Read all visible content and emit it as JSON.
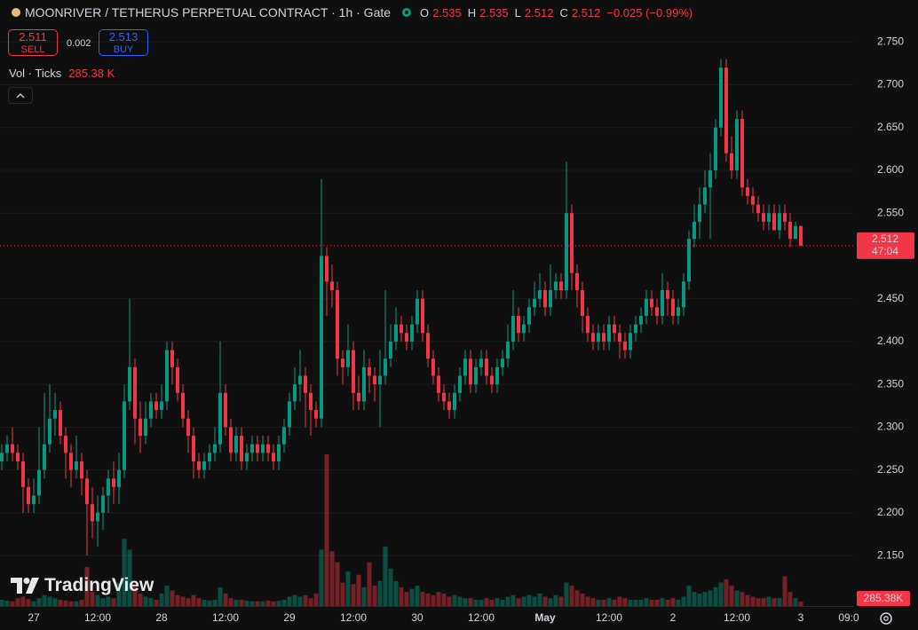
{
  "chart_data": {
    "type": "candlestick",
    "title": "MOONRIVER / TETHERUS PERPETUAL CONTRACT · 1h · Gate",
    "ohlc_labels": [
      "O",
      "H",
      "L",
      "C"
    ],
    "change": "−0.025 (−0.99%)",
    "sell": {
      "price": 2.511,
      "label": "SELL"
    },
    "spread": 0.002,
    "buy": {
      "price": 2.513,
      "label": "BUY"
    },
    "indicator": "Vol · Ticks",
    "volume_legend": "285.38 K",
    "volume_tag": "285.38K",
    "countdown": "47:04",
    "watermark": "TradingView",
    "up_color": "#089981",
    "down_color": "#f23645",
    "grid": true,
    "ylim": [
      2.091,
      2.799
    ],
    "yticks": [
      {
        "value": 2.15,
        "label": "2.150"
      },
      {
        "value": 2.2,
        "label": "2.200"
      },
      {
        "value": 2.25,
        "label": "2.250"
      },
      {
        "value": 2.3,
        "label": "2.300"
      },
      {
        "value": 2.35,
        "label": "2.350"
      },
      {
        "value": 2.4,
        "label": "2.400"
      },
      {
        "value": 2.45,
        "label": "2.450"
      },
      {
        "value": 2.55,
        "label": "2.550"
      },
      {
        "value": 2.6,
        "label": "2.600"
      },
      {
        "value": 2.65,
        "label": "2.650"
      },
      {
        "value": 2.7,
        "label": "2.700"
      },
      {
        "value": 2.75,
        "label": "2.750"
      }
    ],
    "vlim": [
      0,
      9700
    ],
    "categories": [
      null,
      null,
      null,
      null,
      null,
      null,
      "27",
      null,
      null,
      null,
      null,
      null,
      null,
      null,
      null,
      null,
      null,
      null,
      "12:00",
      null,
      null,
      null,
      null,
      null,
      null,
      null,
      null,
      null,
      null,
      null,
      "28",
      null,
      null,
      null,
      null,
      null,
      null,
      null,
      null,
      null,
      null,
      null,
      "12:00",
      null,
      null,
      null,
      null,
      null,
      null,
      null,
      null,
      null,
      null,
      null,
      "29",
      null,
      null,
      null,
      null,
      null,
      null,
      null,
      null,
      null,
      null,
      null,
      "12:00",
      null,
      null,
      null,
      null,
      null,
      null,
      null,
      null,
      null,
      null,
      null,
      "30",
      null,
      null,
      null,
      null,
      null,
      null,
      null,
      null,
      null,
      null,
      null,
      "12:00",
      null,
      null,
      null,
      null,
      null,
      null,
      null,
      null,
      null,
      null,
      null,
      "May",
      null,
      null,
      null,
      null,
      null,
      null,
      null,
      null,
      null,
      null,
      null,
      "12:00",
      null,
      null,
      null,
      null,
      null,
      null,
      null,
      null,
      null,
      null,
      null,
      "2",
      null,
      null,
      null,
      null,
      null,
      null,
      null,
      null,
      null,
      null,
      null,
      "12:00",
      null,
      null,
      null,
      null,
      null,
      null,
      null,
      null,
      null,
      null,
      null,
      "3",
      null,
      null,
      null,
      null,
      null,
      null,
      null,
      null,
      "09:0"
    ],
    "open": [
      2.26,
      2.27,
      2.28,
      2.27,
      2.26,
      2.23,
      2.21,
      2.22,
      2.25,
      2.28,
      2.31,
      2.32,
      2.29,
      2.27,
      2.25,
      2.26,
      2.24,
      2.21,
      2.19,
      2.2,
      2.22,
      2.24,
      2.23,
      2.25,
      2.33,
      2.37,
      2.31,
      2.29,
      2.31,
      2.33,
      2.32,
      2.33,
      2.39,
      2.37,
      2.34,
      2.31,
      2.29,
      2.26,
      2.25,
      2.26,
      2.27,
      2.28,
      2.34,
      2.3,
      2.27,
      2.29,
      2.26,
      2.27,
      2.28,
      2.27,
      2.28,
      2.27,
      2.26,
      2.28,
      2.3,
      2.33,
      2.35,
      2.36,
      2.34,
      2.32,
      2.31,
      2.5,
      2.47,
      2.46,
      2.38,
      2.37,
      2.39,
      2.34,
      2.33,
      2.37,
      2.36,
      2.35,
      2.36,
      2.38,
      2.4,
      2.42,
      2.41,
      2.4,
      2.42,
      2.45,
      2.41,
      2.38,
      2.36,
      2.34,
      2.33,
      2.32,
      2.34,
      2.36,
      2.38,
      2.35,
      2.37,
      2.38,
      2.36,
      2.35,
      2.37,
      2.38,
      2.4,
      2.43,
      2.41,
      2.42,
      2.44,
      2.45,
      2.46,
      2.44,
      2.46,
      2.47,
      2.46,
      2.55,
      2.48,
      2.46,
      2.43,
      2.41,
      2.4,
      2.41,
      2.4,
      2.42,
      2.41,
      2.4,
      2.39,
      2.41,
      2.42,
      2.43,
      2.45,
      2.44,
      2.43,
      2.46,
      2.45,
      2.43,
      2.44,
      2.47,
      2.52,
      2.54,
      2.56,
      2.58,
      2.6,
      2.65,
      2.72,
      2.62,
      2.6,
      2.66,
      2.58,
      2.57,
      2.56,
      2.55,
      2.54,
      2.55,
      2.53,
      2.55,
      2.54,
      2.52,
      2.535,
      null,
      null,
      null,
      null,
      null,
      null,
      null,
      null,
      null
    ],
    "high": [
      2.28,
      2.29,
      2.3,
      2.28,
      2.27,
      2.24,
      2.24,
      2.3,
      2.34,
      2.35,
      2.34,
      2.33,
      2.3,
      2.28,
      2.29,
      2.27,
      2.25,
      2.23,
      2.22,
      2.23,
      2.25,
      2.26,
      2.27,
      2.35,
      2.45,
      2.38,
      2.33,
      2.33,
      2.34,
      2.34,
      2.35,
      2.4,
      2.4,
      2.38,
      2.35,
      2.32,
      2.3,
      2.27,
      2.27,
      2.28,
      2.3,
      2.4,
      2.35,
      2.31,
      2.3,
      2.3,
      2.28,
      2.29,
      2.29,
      2.29,
      2.29,
      2.28,
      2.29,
      2.31,
      2.34,
      2.37,
      2.39,
      2.37,
      2.35,
      2.33,
      2.59,
      2.51,
      2.49,
      2.47,
      2.39,
      2.42,
      2.4,
      2.36,
      2.39,
      2.38,
      2.37,
      2.39,
      2.46,
      2.42,
      2.44,
      2.43,
      2.42,
      2.43,
      2.46,
      2.46,
      2.42,
      2.39,
      2.37,
      2.35,
      2.34,
      2.35,
      2.37,
      2.39,
      2.39,
      2.38,
      2.39,
      2.39,
      2.37,
      2.38,
      2.39,
      2.42,
      2.46,
      2.44,
      2.43,
      2.45,
      2.47,
      2.48,
      2.47,
      2.49,
      2.48,
      2.48,
      2.61,
      2.56,
      2.49,
      2.47,
      2.44,
      2.42,
      2.42,
      2.42,
      2.43,
      2.43,
      2.42,
      2.41,
      2.42,
      2.43,
      2.44,
      2.46,
      2.46,
      2.45,
      2.48,
      2.47,
      2.46,
      2.45,
      2.48,
      2.53,
      2.56,
      2.58,
      2.6,
      2.62,
      2.66,
      2.73,
      2.73,
      2.64,
      2.67,
      2.67,
      2.59,
      2.58,
      2.57,
      2.56,
      2.56,
      2.56,
      2.56,
      2.56,
      2.55,
      2.54,
      2.535,
      null,
      null,
      null,
      null,
      null,
      null,
      null,
      null,
      null
    ],
    "low": [
      2.25,
      2.26,
      2.26,
      2.25,
      2.2,
      2.2,
      2.2,
      2.21,
      2.24,
      2.27,
      2.29,
      2.28,
      2.24,
      2.23,
      2.24,
      2.22,
      2.15,
      2.17,
      2.16,
      2.18,
      2.2,
      2.21,
      2.21,
      2.24,
      2.32,
      2.28,
      2.27,
      2.28,
      2.3,
      2.31,
      2.31,
      2.32,
      2.35,
      2.33,
      2.3,
      2.27,
      2.24,
      2.24,
      2.24,
      2.25,
      2.26,
      2.27,
      2.29,
      2.26,
      2.26,
      2.25,
      2.25,
      2.26,
      2.26,
      2.26,
      2.26,
      2.25,
      2.25,
      2.27,
      2.29,
      2.32,
      2.33,
      2.3,
      2.29,
      2.3,
      2.3,
      2.43,
      2.44,
      2.36,
      2.35,
      2.36,
      2.32,
      2.32,
      2.32,
      2.34,
      2.33,
      2.3,
      2.35,
      2.37,
      2.39,
      2.4,
      2.39,
      2.39,
      2.41,
      2.4,
      2.37,
      2.35,
      2.33,
      2.32,
      2.31,
      2.31,
      2.33,
      2.35,
      2.34,
      2.34,
      2.36,
      2.35,
      2.34,
      2.34,
      2.36,
      2.37,
      2.39,
      2.4,
      2.4,
      2.41,
      2.43,
      2.44,
      2.43,
      2.43,
      2.45,
      2.45,
      2.45,
      2.46,
      2.44,
      2.41,
      2.4,
      2.39,
      2.39,
      2.39,
      2.39,
      2.4,
      2.38,
      2.38,
      2.38,
      2.4,
      2.41,
      2.42,
      2.43,
      2.42,
      2.42,
      2.43,
      2.42,
      2.42,
      2.43,
      2.46,
      2.51,
      2.52,
      2.55,
      2.52,
      2.59,
      2.64,
      2.61,
      2.59,
      2.59,
      2.57,
      2.56,
      2.55,
      2.54,
      2.53,
      2.53,
      2.53,
      2.52,
      2.53,
      2.51,
      2.52,
      2.512,
      null,
      null,
      null,
      null,
      null,
      null,
      null,
      null,
      null
    ],
    "close": [
      2.27,
      2.28,
      2.27,
      2.26,
      2.23,
      2.21,
      2.22,
      2.25,
      2.28,
      2.31,
      2.32,
      2.29,
      2.27,
      2.25,
      2.26,
      2.24,
      2.21,
      2.19,
      2.2,
      2.22,
      2.24,
      2.23,
      2.25,
      2.33,
      2.37,
      2.31,
      2.29,
      2.31,
      2.33,
      2.32,
      2.33,
      2.39,
      2.37,
      2.34,
      2.31,
      2.29,
      2.26,
      2.25,
      2.26,
      2.27,
      2.28,
      2.34,
      2.3,
      2.27,
      2.29,
      2.26,
      2.27,
      2.28,
      2.27,
      2.28,
      2.27,
      2.26,
      2.28,
      2.3,
      2.33,
      2.35,
      2.36,
      2.34,
      2.32,
      2.31,
      2.5,
      2.47,
      2.46,
      2.38,
      2.37,
      2.39,
      2.34,
      2.33,
      2.37,
      2.36,
      2.35,
      2.36,
      2.38,
      2.4,
      2.42,
      2.41,
      2.4,
      2.42,
      2.45,
      2.41,
      2.38,
      2.36,
      2.34,
      2.33,
      2.32,
      2.34,
      2.36,
      2.38,
      2.35,
      2.37,
      2.38,
      2.36,
      2.35,
      2.37,
      2.38,
      2.4,
      2.43,
      2.41,
      2.42,
      2.44,
      2.45,
      2.46,
      2.44,
      2.46,
      2.47,
      2.46,
      2.55,
      2.48,
      2.46,
      2.43,
      2.41,
      2.4,
      2.41,
      2.4,
      2.42,
      2.41,
      2.4,
      2.39,
      2.41,
      2.42,
      2.43,
      2.45,
      2.44,
      2.43,
      2.46,
      2.45,
      2.43,
      2.44,
      2.47,
      2.52,
      2.54,
      2.56,
      2.58,
      2.6,
      2.65,
      2.72,
      2.62,
      2.6,
      2.66,
      2.58,
      2.57,
      2.56,
      2.55,
      2.54,
      2.55,
      2.53,
      2.55,
      2.54,
      2.52,
      2.535,
      2.512,
      null,
      null,
      null,
      null,
      null,
      null,
      null,
      null,
      null
    ],
    "volume": [
      400,
      350,
      300,
      500,
      600,
      450,
      300,
      500,
      700,
      600,
      500,
      400,
      350,
      300,
      300,
      400,
      2500,
      900,
      700,
      500,
      600,
      500,
      1500,
      4300,
      3600,
      1200,
      800,
      600,
      500,
      400,
      800,
      1300,
      1000,
      700,
      600,
      500,
      700,
      500,
      400,
      350,
      400,
      1200,
      800,
      500,
      400,
      400,
      350,
      300,
      300,
      300,
      350,
      300,
      350,
      400,
      600,
      700,
      600,
      700,
      500,
      800,
      3600,
      9700,
      3500,
      2800,
      1500,
      2200,
      1400,
      2000,
      1200,
      2800,
      1300,
      1600,
      3800,
      2400,
      1600,
      1200,
      900,
      1100,
      1300,
      900,
      800,
      700,
      900,
      800,
      600,
      700,
      600,
      500,
      500,
      400,
      400,
      500,
      400,
      500,
      400,
      600,
      700,
      500,
      600,
      700,
      600,
      800,
      600,
      500,
      700,
      600,
      1500,
      1300,
      1000,
      800,
      600,
      500,
      400,
      400,
      500,
      400,
      600,
      500,
      400,
      400,
      400,
      500,
      400,
      400,
      500,
      400,
      500,
      400,
      600,
      1300,
      900,
      800,
      900,
      1000,
      1200,
      1500,
      1700,
      1300,
      1000,
      900,
      700,
      600,
      500,
      500,
      600,
      500,
      500,
      1900,
      900,
      500,
      285.38,
      null,
      null,
      null,
      null,
      null,
      null,
      null,
      null,
      null
    ]
  }
}
